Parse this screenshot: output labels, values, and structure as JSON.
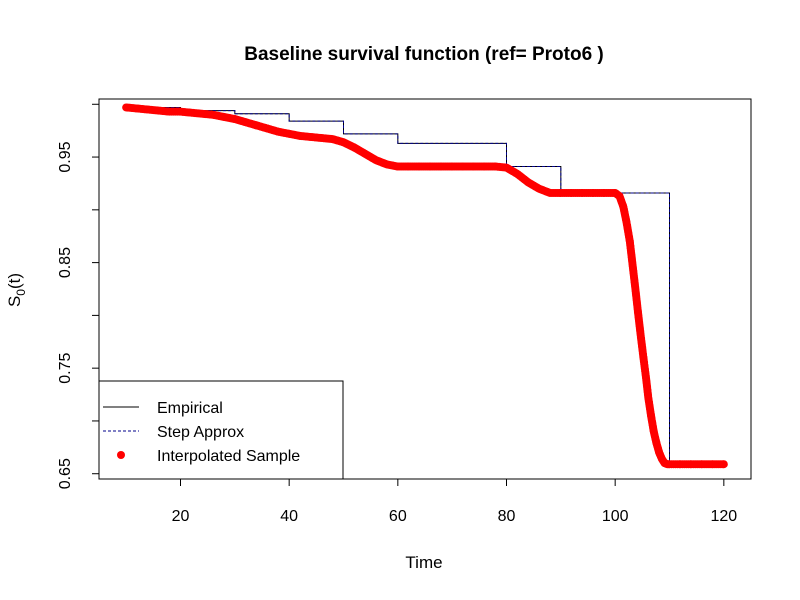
{
  "chart_data": {
    "type": "line",
    "title": "Baseline survival function (ref= Proto6 )",
    "xlabel": "Time",
    "ylabel_main": "S",
    "ylabel_sub": "0",
    "ylabel_tail": "(t)",
    "xlim": [
      5,
      125
    ],
    "ylim": [
      0.645,
      1.005
    ],
    "x_ticks": [
      20,
      40,
      60,
      80,
      100,
      120
    ],
    "x_tick_labels": [
      "20",
      "40",
      "60",
      "80",
      "100",
      "120"
    ],
    "y_ticks": [
      0.65,
      0.7,
      0.75,
      0.8,
      0.85,
      0.9,
      0.95,
      1.0
    ],
    "y_tick_labels": [
      "0.65",
      "",
      "0.75",
      "",
      "0.85",
      "",
      "0.95",
      ""
    ],
    "grid": false,
    "legend_position": "bottom-left",
    "colors": {
      "empirical": "#000000",
      "step_approx": "#00008b",
      "interpolated": "#ff0000"
    },
    "series": [
      {
        "name": "Empirical",
        "style": "step",
        "x": [
          10,
          20,
          30,
          40,
          50,
          60,
          80,
          90,
          110,
          120
        ],
        "y": [
          0.997,
          0.994,
          0.991,
          0.984,
          0.972,
          0.963,
          0.941,
          0.916,
          0.659,
          0.659
        ]
      },
      {
        "name": "Step Approx",
        "style": "dashed",
        "x": [
          10,
          20,
          30,
          40,
          50,
          60,
          80,
          90,
          110,
          120
        ],
        "y": [
          0.997,
          0.994,
          0.991,
          0.984,
          0.972,
          0.963,
          0.941,
          0.916,
          0.659,
          0.659
        ]
      },
      {
        "name": "Interpolated Sample",
        "style": "points",
        "x": [
          10,
          12,
          14,
          16,
          18,
          20,
          22,
          24,
          26,
          28,
          30,
          32,
          34,
          36,
          38,
          40,
          42,
          44,
          46,
          48,
          50,
          52,
          54,
          56,
          58,
          60,
          62,
          64,
          66,
          68,
          70,
          72,
          74,
          76,
          78,
          80,
          82,
          84,
          86,
          88,
          90,
          92,
          94,
          96,
          98,
          100,
          100.8,
          101.5,
          102.1,
          102.7,
          103.2,
          103.7,
          104.2,
          104.7,
          105.2,
          105.7,
          106.1,
          106.6,
          107.1,
          107.6,
          108.1,
          108.6,
          109.1,
          109.6,
          110,
          112,
          114,
          116,
          118,
          120
        ],
        "y": [
          0.997,
          0.996,
          0.995,
          0.994,
          0.993,
          0.993,
          0.992,
          0.991,
          0.99,
          0.988,
          0.986,
          0.983,
          0.98,
          0.977,
          0.974,
          0.972,
          0.97,
          0.969,
          0.968,
          0.967,
          0.964,
          0.959,
          0.953,
          0.947,
          0.943,
          0.941,
          0.941,
          0.941,
          0.941,
          0.941,
          0.941,
          0.941,
          0.941,
          0.941,
          0.941,
          0.94,
          0.934,
          0.926,
          0.92,
          0.916,
          0.916,
          0.916,
          0.916,
          0.916,
          0.916,
          0.916,
          0.913,
          0.903,
          0.888,
          0.87,
          0.848,
          0.826,
          0.803,
          0.781,
          0.76,
          0.74,
          0.722,
          0.705,
          0.69,
          0.679,
          0.67,
          0.664,
          0.66,
          0.659,
          0.659,
          0.659,
          0.659,
          0.659,
          0.659,
          0.659
        ]
      }
    ]
  }
}
